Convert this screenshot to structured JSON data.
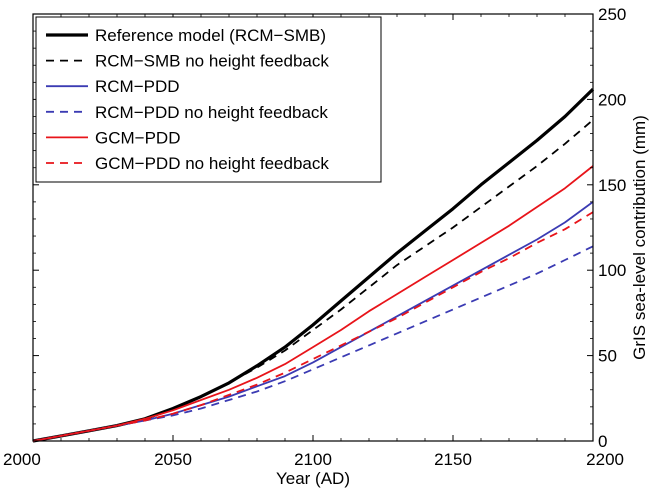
{
  "chart_data": {
    "type": "line",
    "title": "",
    "xlabel": "Year (AD)",
    "ylabel": "GrIS sea-level contribution (mm)",
    "y_axis_side": "right",
    "xlim": [
      2000,
      2200
    ],
    "ylim": [
      0,
      250
    ],
    "xticks": [
      2000,
      2050,
      2100,
      2150,
      2200
    ],
    "yticks": [
      0,
      50,
      100,
      150,
      200,
      250
    ],
    "grid": false,
    "legend_position": "top-left",
    "x": [
      2000,
      2010,
      2020,
      2030,
      2040,
      2050,
      2060,
      2070,
      2080,
      2090,
      2100,
      2110,
      2120,
      2130,
      2140,
      2150,
      2160,
      2170,
      2180,
      2190,
      2200
    ],
    "series": [
      {
        "name": "Reference model (RCM−SMB)",
        "color": "#000000",
        "style": "solid",
        "width": "thick",
        "values": [
          0,
          3,
          6,
          9,
          13,
          19,
          26,
          34,
          44,
          55,
          68,
          82,
          96,
          110,
          123,
          136,
          150,
          163,
          176,
          190,
          206
        ]
      },
      {
        "name": "RCM−SMB no height feedback",
        "color": "#000000",
        "style": "dashed",
        "width": "normal",
        "values": [
          0,
          3,
          6,
          9,
          13,
          19,
          26,
          34,
          43,
          53,
          65,
          77,
          90,
          103,
          114,
          125,
          137,
          149,
          161,
          174,
          188
        ]
      },
      {
        "name": "RCM−PDD",
        "color": "#3b3bb3",
        "style": "solid",
        "width": "normal",
        "values": [
          0,
          3,
          6,
          9,
          12,
          16,
          21,
          26,
          32,
          38,
          46,
          55,
          64,
          73,
          82,
          91,
          100,
          109,
          118,
          128,
          140
        ]
      },
      {
        "name": "RCM−PDD no height feedback",
        "color": "#3b3bb3",
        "style": "dashed",
        "width": "normal",
        "values": [
          0,
          3,
          6,
          9,
          12,
          15,
          19,
          24,
          29,
          35,
          42,
          49,
          56,
          63,
          70,
          77,
          84,
          91,
          98,
          106,
          114
        ]
      },
      {
        "name": "GCM−PDD",
        "color": "#e8141a",
        "style": "solid",
        "width": "normal",
        "values": [
          0,
          3,
          6,
          9,
          13,
          18,
          24,
          30,
          37,
          45,
          55,
          65,
          76,
          86,
          96,
          106,
          116,
          126,
          137,
          148,
          161
        ]
      },
      {
        "name": "GCM−PDD no height feedback",
        "color": "#e8141a",
        "style": "dashed",
        "width": "normal",
        "values": [
          0,
          3,
          6,
          9,
          12,
          16,
          21,
          27,
          33,
          40,
          48,
          56,
          64,
          72,
          81,
          90,
          99,
          107,
          116,
          124,
          134
        ]
      }
    ]
  }
}
